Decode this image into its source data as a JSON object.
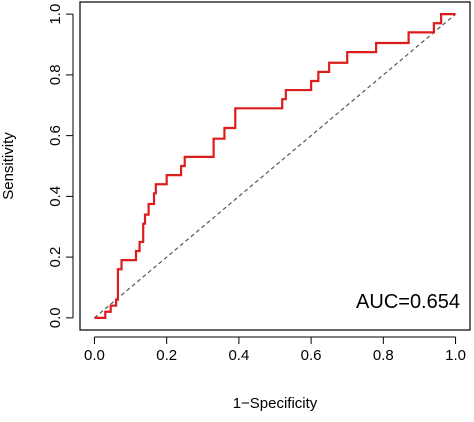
{
  "chart_data": {
    "type": "line",
    "xlabel": "1−Specificity",
    "ylabel": "Sensitivity",
    "annotation": "AUC=0.654",
    "xlim": [
      -0.04,
      1.04
    ],
    "ylim": [
      -0.04,
      1.04
    ],
    "xticks": [
      {
        "value": 0,
        "label": "0.0"
      },
      {
        "value": 0.2,
        "label": "0.2"
      },
      {
        "value": 0.4,
        "label": "0.4"
      },
      {
        "value": 0.6,
        "label": "0.6"
      },
      {
        "value": 0.8,
        "label": "0.8"
      },
      {
        "value": 1,
        "label": "1.0"
      }
    ],
    "yticks": [
      {
        "value": 0,
        "label": "0.0"
      },
      {
        "value": 0.2,
        "label": "0.2"
      },
      {
        "value": 0.4,
        "label": "0.4"
      },
      {
        "value": 0.6,
        "label": "0.6"
      },
      {
        "value": 0.8,
        "label": "0.8"
      },
      {
        "value": 1,
        "label": "1.0"
      }
    ],
    "reference_line": {
      "x": [
        0,
        1
      ],
      "y": [
        0,
        1
      ],
      "color": "#555555"
    },
    "x": [
      0,
      0.03,
      0.03,
      0.045,
      0.045,
      0.06,
      0.06,
      0.065,
      0.065,
      0.075,
      0.075,
      0.115,
      0.115,
      0.125,
      0.125,
      0.135,
      0.135,
      0.14,
      0.14,
      0.15,
      0.15,
      0.165,
      0.165,
      0.17,
      0.17,
      0.2,
      0.2,
      0.24,
      0.24,
      0.25,
      0.25,
      0.33,
      0.33,
      0.36,
      0.36,
      0.39,
      0.39,
      0.52,
      0.52,
      0.53,
      0.53,
      0.6,
      0.6,
      0.62,
      0.62,
      0.65,
      0.65,
      0.7,
      0.7,
      0.78,
      0.78,
      0.87,
      0.87,
      0.94,
      0.94,
      0.96,
      0.96,
      1
    ],
    "series": [
      {
        "color": "#dd1c1c",
        "values": [
          0,
          0,
          0.02,
          0.02,
          0.04,
          0.04,
          0.06,
          0.06,
          0.16,
          0.16,
          0.19,
          0.19,
          0.22,
          0.22,
          0.25,
          0.25,
          0.31,
          0.31,
          0.34,
          0.34,
          0.375,
          0.375,
          0.41,
          0.41,
          0.44,
          0.44,
          0.47,
          0.47,
          0.5,
          0.5,
          0.53,
          0.53,
          0.59,
          0.59,
          0.625,
          0.625,
          0.69,
          0.69,
          0.72,
          0.72,
          0.75,
          0.75,
          0.78,
          0.78,
          0.81,
          0.81,
          0.84,
          0.84,
          0.875,
          0.875,
          0.905,
          0.905,
          0.94,
          0.94,
          0.97,
          0.97,
          1,
          1
        ]
      }
    ]
  }
}
